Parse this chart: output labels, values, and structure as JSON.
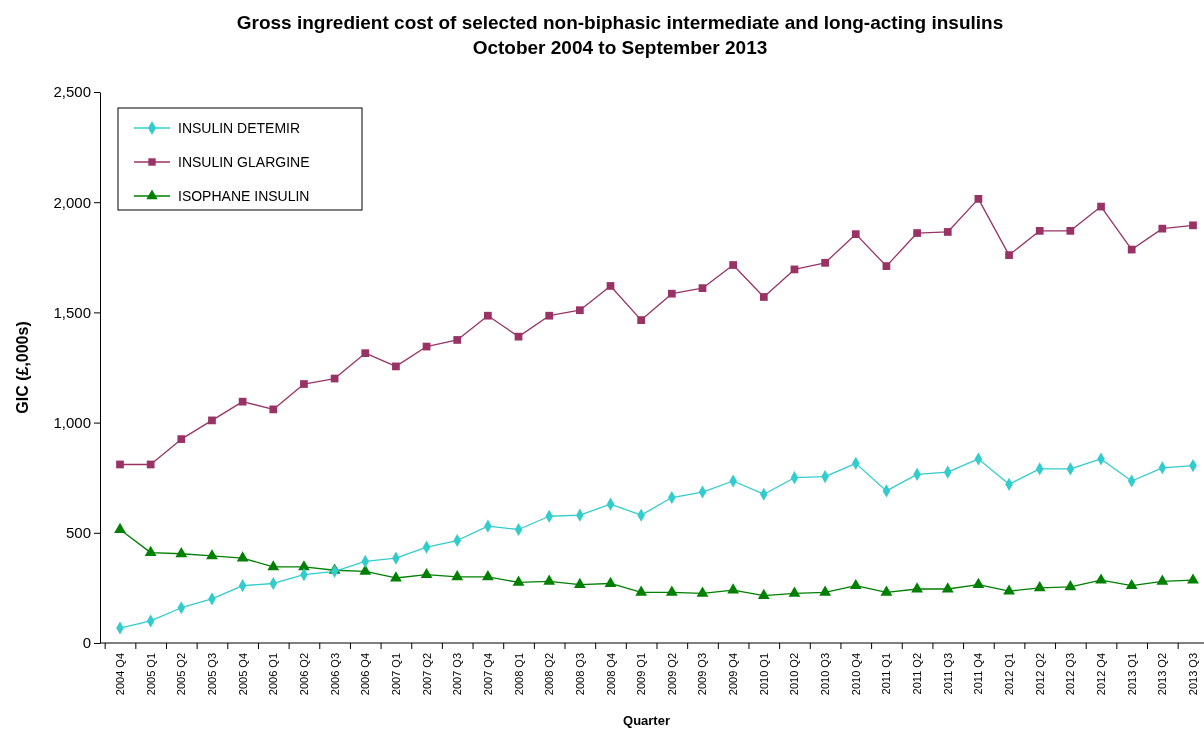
{
  "chart_data": {
    "type": "line",
    "title": "Gross ingredient cost of selected non-biphasic intermediate and long-acting insulins",
    "subtitle": "October 2004 to September 2013",
    "xlabel": "Quarter",
    "ylabel": "GIC (£,000s)",
    "categories": [
      "2004 Q4",
      "2005 Q1",
      "2005 Q2",
      "2005 Q3",
      "2005 Q4",
      "2006 Q1",
      "2006 Q2",
      "2006 Q3",
      "2006 Q4",
      "2007 Q1",
      "2007 Q2",
      "2007 Q3",
      "2007 Q4",
      "2008 Q1",
      "2008 Q2",
      "2008 Q3",
      "2008 Q4",
      "2009 Q1",
      "2009 Q2",
      "2009 Q3",
      "2009 Q4",
      "2010 Q1",
      "2010 Q2",
      "2010 Q3",
      "2010 Q4",
      "2011 Q1",
      "2011 Q2",
      "2011 Q3",
      "2011 Q4",
      "2012 Q1",
      "2012 Q2",
      "2012 Q3",
      "2012 Q4",
      "2013 Q1",
      "2013 Q2",
      "2013 Q3"
    ],
    "series": [
      {
        "name": "INSULIN DETEMIR",
        "color": "#33cccc",
        "marker": "diamond",
        "values": [
          68,
          100,
          160,
          200,
          260,
          270,
          310,
          325,
          370,
          385,
          435,
          465,
          530,
          515,
          575,
          580,
          630,
          580,
          660,
          685,
          735,
          675,
          750,
          755,
          815,
          690,
          765,
          775,
          835,
          720,
          790,
          790,
          835,
          735,
          795,
          805
        ]
      },
      {
        "name": "INSULIN GLARGINE",
        "color": "#993366",
        "marker": "square",
        "values": [
          810,
          810,
          925,
          1010,
          1095,
          1060,
          1175,
          1200,
          1315,
          1255,
          1345,
          1375,
          1485,
          1390,
          1485,
          1510,
          1620,
          1465,
          1585,
          1610,
          1715,
          1570,
          1695,
          1725,
          1855,
          1710,
          1860,
          1865,
          2015,
          1760,
          1870,
          1870,
          1980,
          1785,
          1880,
          1895
        ]
      },
      {
        "name": "ISOPHANE INSULIN",
        "color": "#008000",
        "marker": "triangle",
        "values": [
          515,
          410,
          405,
          395,
          385,
          345,
          345,
          330,
          325,
          295,
          310,
          300,
          300,
          275,
          280,
          265,
          270,
          230,
          230,
          225,
          240,
          215,
          225,
          230,
          260,
          230,
          245,
          245,
          265,
          235,
          250,
          255,
          285,
          260,
          280,
          285
        ]
      }
    ],
    "ylim": [
      0,
      2500
    ],
    "yticks": [
      0,
      500,
      {
        "value": 1000,
        "label": "1,000"
      },
      {
        "value": 1500,
        "label": "1,500"
      },
      {
        "value": 2000,
        "label": "2,000"
      },
      {
        "value": 2500,
        "label": "2,500"
      }
    ],
    "grid": false,
    "legend": "top left",
    "line_style": "solid"
  }
}
